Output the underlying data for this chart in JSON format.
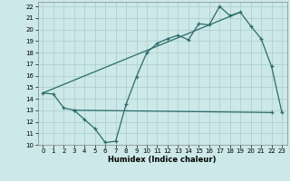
{
  "xlabel": "Humidex (Indice chaleur)",
  "bg_color": "#cce8e8",
  "grid_color": "#aacccc",
  "line_color": "#2d6b6b",
  "xlim": [
    -0.5,
    23.5
  ],
  "ylim": [
    10,
    22.4
  ],
  "yticks": [
    10,
    11,
    12,
    13,
    14,
    15,
    16,
    17,
    18,
    19,
    20,
    21,
    22
  ],
  "xticks": [
    0,
    1,
    2,
    3,
    4,
    5,
    6,
    7,
    8,
    9,
    10,
    11,
    12,
    13,
    14,
    15,
    16,
    17,
    18,
    19,
    20,
    21,
    22,
    23
  ],
  "line1_x": [
    0,
    1,
    2,
    3,
    4,
    5,
    6,
    7,
    8,
    9,
    10,
    11,
    12,
    13,
    14,
    15,
    16,
    17,
    18,
    19,
    20,
    21,
    22,
    23
  ],
  "line1_y": [
    14.5,
    14.4,
    13.2,
    13.0,
    12.2,
    11.4,
    10.2,
    10.3,
    13.5,
    15.9,
    18.0,
    18.8,
    19.2,
    19.5,
    19.1,
    20.5,
    20.4,
    22.0,
    21.2,
    21.5,
    20.3,
    19.2,
    16.8,
    12.8
  ],
  "line2_x": [
    3,
    22
  ],
  "line2_y": [
    13.0,
    12.8
  ],
  "line3_x": [
    0,
    19
  ],
  "line3_y": [
    14.5,
    21.5
  ],
  "marker_size": 3.5,
  "lw": 0.9
}
